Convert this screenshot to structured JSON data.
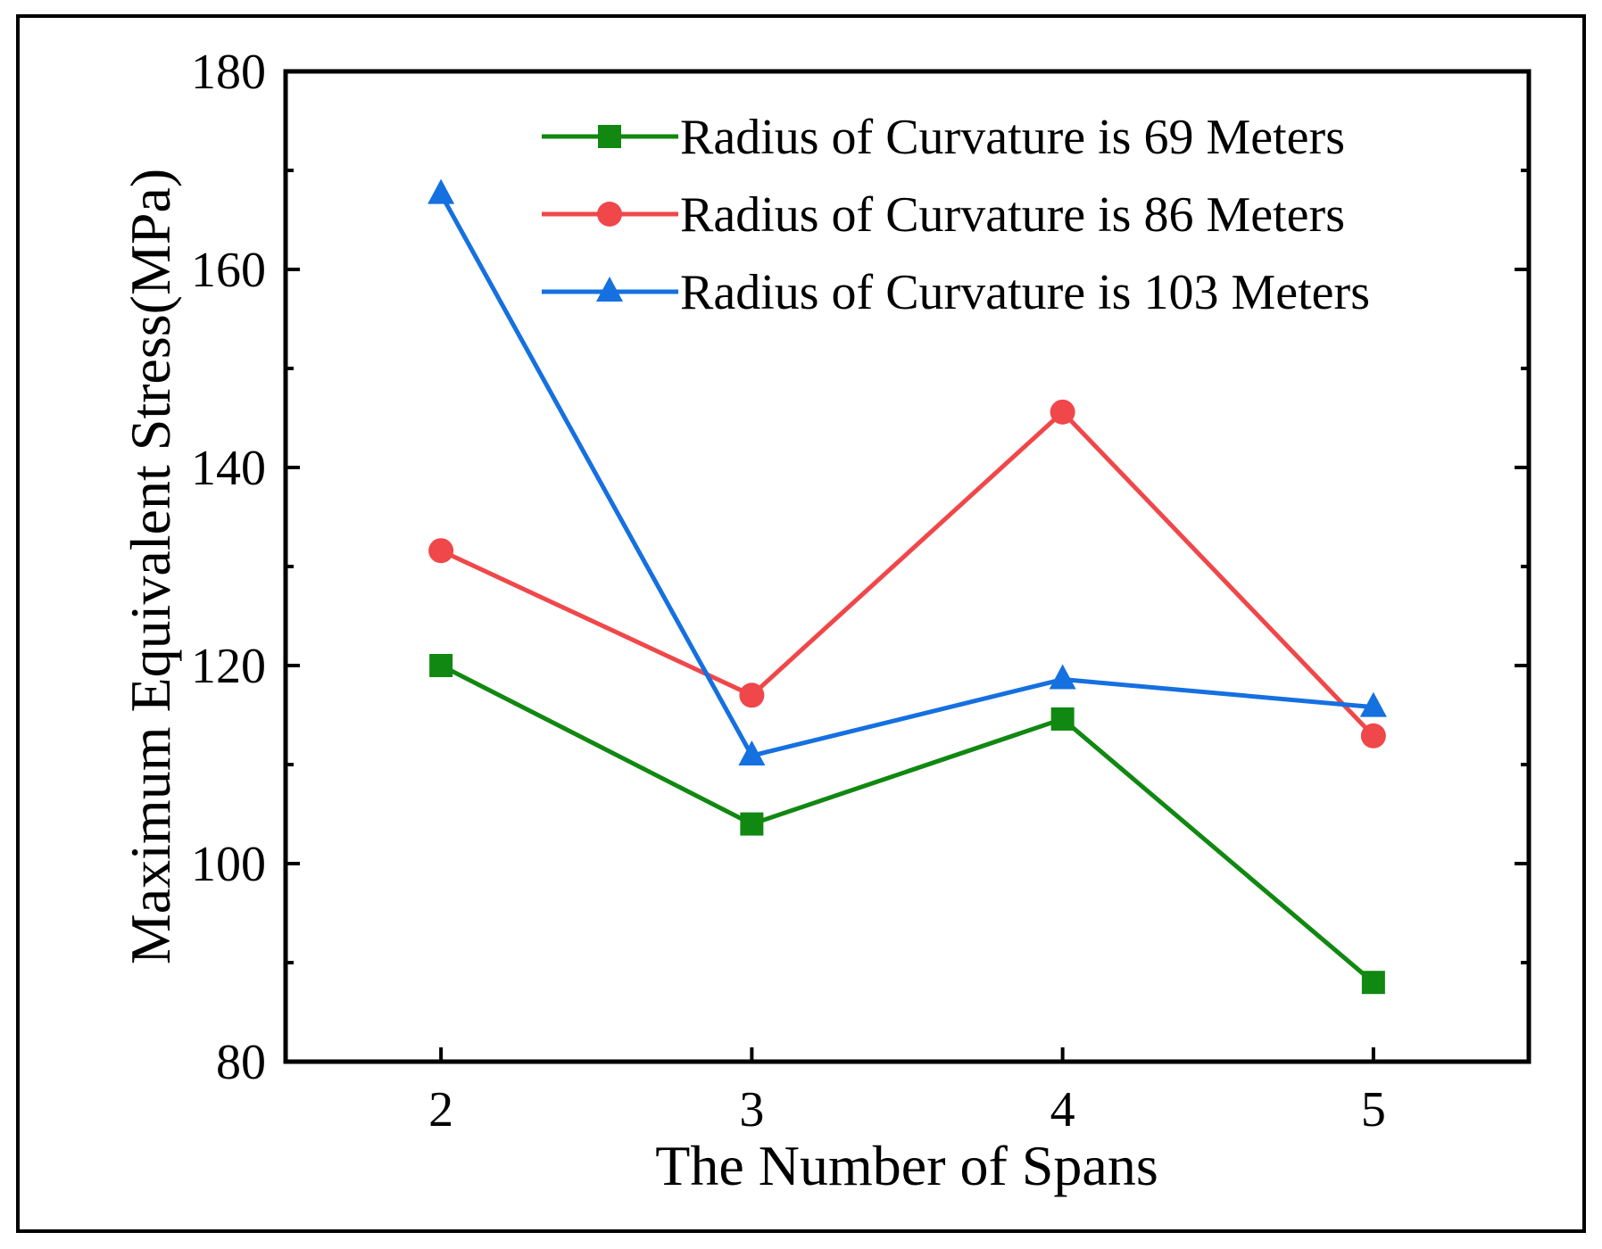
{
  "chart_data": {
    "type": "line",
    "title": "",
    "xlabel": "The Number of Spans",
    "ylabel": "Maximum Equivalent Stress(MPa)",
    "x": [
      2,
      3,
      4,
      5
    ],
    "xlim": [
      1.5,
      5.5
    ],
    "ylim": [
      80,
      180
    ],
    "xticks": [
      "2",
      "3",
      "4",
      "5"
    ],
    "yticks": [
      "80",
      "100",
      "120",
      "140",
      "160",
      "180"
    ],
    "grid": false,
    "legend_position": "top-right",
    "series": [
      {
        "name": "Radius of Curvature is 69 Meters",
        "values": [
          120,
          104,
          114.6,
          88
        ],
        "color": "#118811",
        "marker": "square"
      },
      {
        "name": "Radius of Curvature is 86 Meters",
        "values": [
          131.6,
          117,
          145.6,
          112.9
        ],
        "color": "#f0474a",
        "marker": "circle"
      },
      {
        "name": "Radius of Curvature is 103 Meters",
        "values": [
          167.6,
          110.9,
          118.6,
          115.8
        ],
        "color": "#1570e0",
        "marker": "triangle"
      }
    ]
  }
}
